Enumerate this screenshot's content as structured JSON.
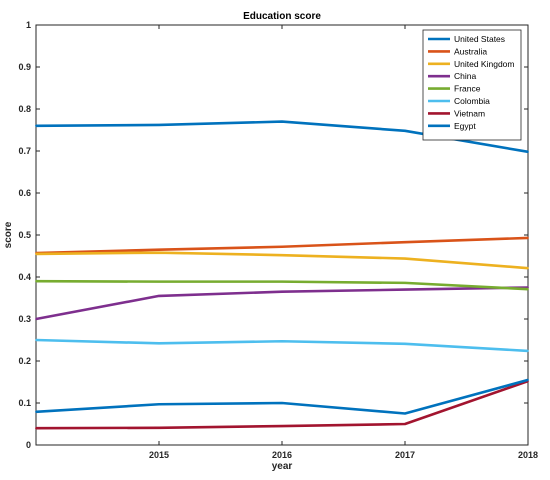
{
  "chart_data": {
    "type": "line",
    "title": "Education score",
    "xlabel": "year",
    "ylabel": "score",
    "x": [
      2014,
      2015,
      2016,
      2017,
      2018
    ],
    "xlim": [
      2014,
      2018
    ],
    "ylim": [
      0,
      1
    ],
    "x_ticks": [
      2015,
      2016,
      2017,
      2018
    ],
    "x_tick_labels": [
      "2015",
      "2016",
      "2017",
      "2018"
    ],
    "y_ticks": [
      0,
      0.1,
      0.2,
      0.3,
      0.4,
      0.5,
      0.6,
      0.7,
      0.8,
      0.9,
      1
    ],
    "y_tick_labels": [
      "0",
      "0.1",
      "0.2",
      "0.3",
      "0.4",
      "0.5",
      "0.6",
      "0.7",
      "0.8",
      "0.9",
      "1"
    ],
    "grid": false,
    "legend_position": "top-right",
    "series": [
      {
        "name": "United States",
        "color": "#0072BD",
        "values": [
          0.76,
          0.762,
          0.77,
          0.748,
          0.698
        ]
      },
      {
        "name": "Australia",
        "color": "#D95319",
        "values": [
          0.457,
          0.465,
          0.472,
          0.483,
          0.493
        ]
      },
      {
        "name": "United Kingdom",
        "color": "#EDB120",
        "values": [
          0.455,
          0.458,
          0.452,
          0.444,
          0.421
        ]
      },
      {
        "name": "China",
        "color": "#7E2F8E",
        "values": [
          0.3,
          0.355,
          0.365,
          0.37,
          0.375
        ]
      },
      {
        "name": "France",
        "color": "#77AC30",
        "values": [
          0.39,
          0.389,
          0.389,
          0.386,
          0.371
        ]
      },
      {
        "name": "Colombia",
        "color": "#4DBEEE",
        "values": [
          0.25,
          0.242,
          0.247,
          0.241,
          0.224
        ]
      },
      {
        "name": "Vietnam",
        "color": "#A2142F",
        "values": [
          0.04,
          0.041,
          0.045,
          0.05,
          0.152
        ]
      },
      {
        "name": "Egypt",
        "color": "#0072BD",
        "values": [
          0.079,
          0.097,
          0.1,
          0.075,
          0.155
        ]
      }
    ]
  }
}
